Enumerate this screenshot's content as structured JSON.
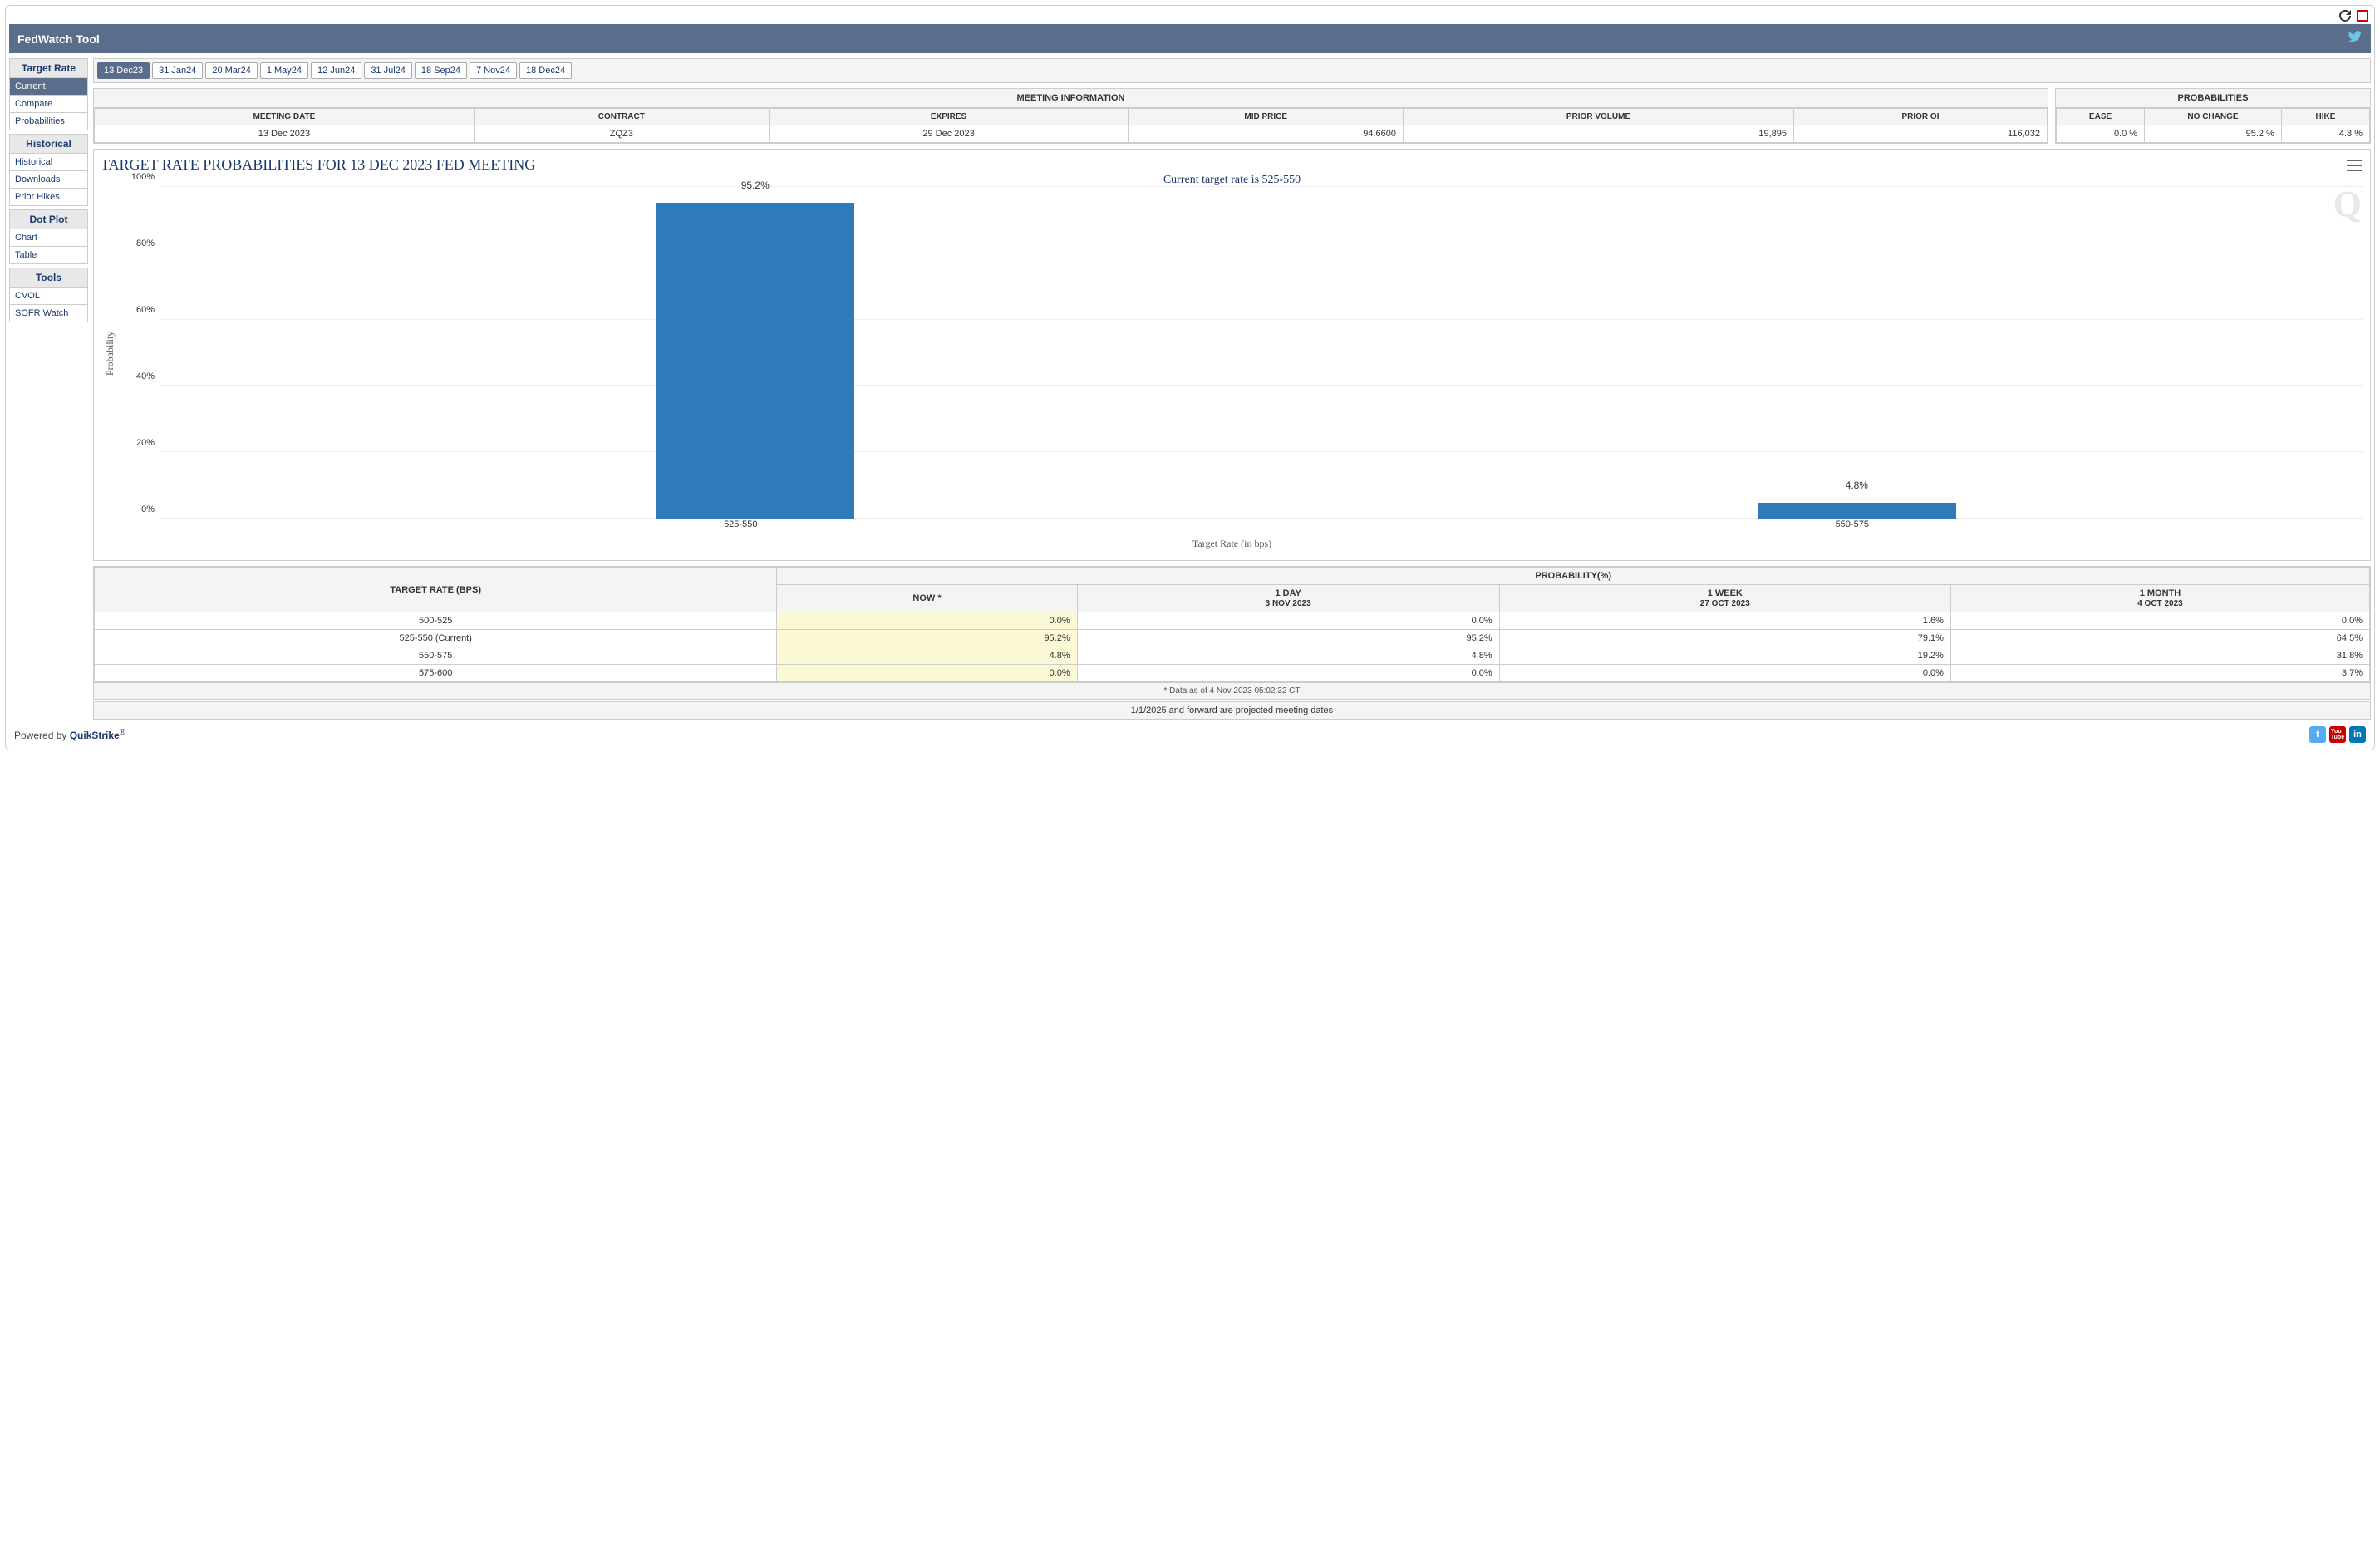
{
  "app_title": "FedWatch Tool",
  "sidebar": {
    "groups": [
      {
        "header": "Target Rate",
        "items": [
          "Current",
          "Compare",
          "Probabilities"
        ],
        "active_index": 0
      },
      {
        "header": "Historical",
        "items": [
          "Historical",
          "Downloads",
          "Prior Hikes"
        ]
      },
      {
        "header": "Dot Plot",
        "items": [
          "Chart",
          "Table"
        ]
      },
      {
        "header": "Tools",
        "items": [
          "CVOL",
          "SOFR Watch"
        ]
      }
    ]
  },
  "tabs": {
    "items": [
      "13 Dec23",
      "31 Jan24",
      "20 Mar24",
      "1 May24",
      "12 Jun24",
      "31 Jul24",
      "18 Sep24",
      "7 Nov24",
      "18 Dec24"
    ],
    "active_index": 0
  },
  "meeting_info": {
    "title": "MEETING INFORMATION",
    "headers": [
      "MEETING DATE",
      "CONTRACT",
      "EXPIRES",
      "MID PRICE",
      "PRIOR VOLUME",
      "PRIOR OI"
    ],
    "row": [
      "13 Dec 2023",
      "ZQZ3",
      "29 Dec 2023",
      "94.6600",
      "19,895",
      "116,032"
    ],
    "right_align": [
      false,
      false,
      false,
      true,
      true,
      true
    ]
  },
  "probabilities_panel": {
    "title": "PROBABILITIES",
    "headers": [
      "EASE",
      "NO CHANGE",
      "HIKE"
    ],
    "row": [
      "0.0 %",
      "95.2 %",
      "4.8 %"
    ]
  },
  "chart": {
    "title": "TARGET RATE PROBABILITIES FOR 13 DEC 2023 FED MEETING",
    "subtitle": "Current target rate is 525-550",
    "ylabel": "Probability",
    "xlabel": "Target Rate (in bps)",
    "ylim": [
      0,
      100
    ],
    "ytick_step": 20,
    "bar_color": "#2f7ab8",
    "grid_color": "#eeeeee",
    "categories": [
      "525-550",
      "550-575"
    ],
    "values": [
      95.2,
      4.8
    ],
    "value_labels": [
      "95.2%",
      "4.8%"
    ],
    "bar_positions_pct": [
      27,
      77
    ],
    "bar_width_pct": 9
  },
  "prob_table": {
    "col0_header": "TARGET RATE (BPS)",
    "col1_header": "PROBABILITY(%)",
    "time_cols": [
      {
        "top": "NOW *",
        "sub": ""
      },
      {
        "top": "1 DAY",
        "sub": "3 NOV 2023"
      },
      {
        "top": "1 WEEK",
        "sub": "27 OCT 2023"
      },
      {
        "top": "1 MONTH",
        "sub": "4 OCT 2023"
      }
    ],
    "rows": [
      {
        "label": "500-525",
        "vals": [
          "0.0%",
          "0.0%",
          "1.6%",
          "0.0%"
        ]
      },
      {
        "label": "525-550 (Current)",
        "vals": [
          "95.2%",
          "95.2%",
          "79.1%",
          "64.5%"
        ]
      },
      {
        "label": "550-575",
        "vals": [
          "4.8%",
          "4.8%",
          "19.2%",
          "31.8%"
        ]
      },
      {
        "label": "575-600",
        "vals": [
          "0.0%",
          "0.0%",
          "0.0%",
          "3.7%"
        ]
      }
    ],
    "footnote": "* Data as of 4 Nov 2023 05:02:32 CT"
  },
  "proj_note": "1/1/2025 and forward are projected meeting dates",
  "footer": {
    "prefix": "Powered by ",
    "brand": "QuikStrike",
    "suffix": "®"
  }
}
